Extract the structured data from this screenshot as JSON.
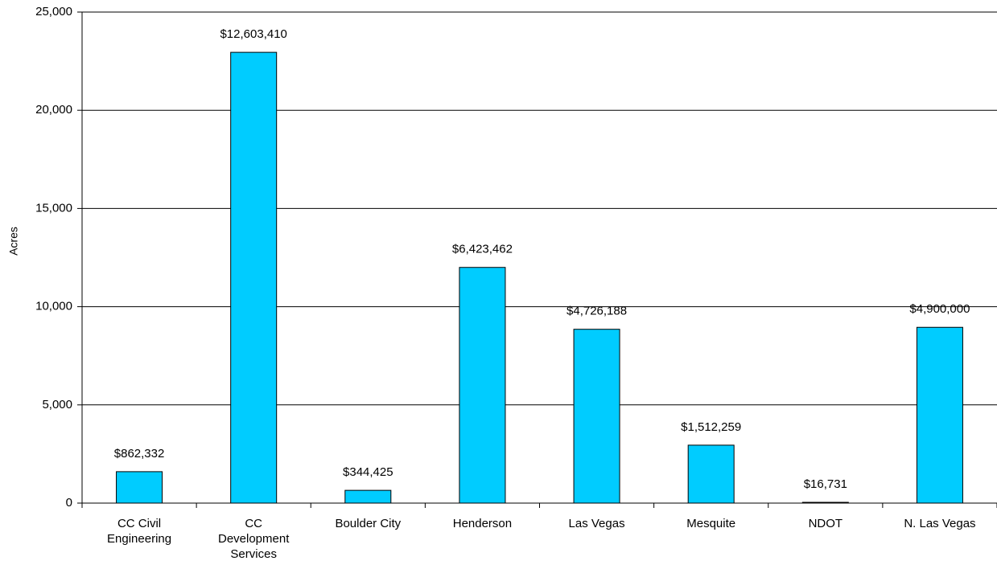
{
  "chart_data": {
    "type": "bar",
    "y_label": "Acres",
    "categories": [
      "CC Civil Engineering",
      "CC Development Services",
      "Boulder City",
      "Henderson",
      "Las Vegas",
      "Mesquite",
      "NDOT",
      "N. Las Vegas"
    ],
    "values": [
      1600,
      22950,
      650,
      12000,
      8850,
      2950,
      40,
      8950
    ],
    "bar_annotations": [
      "$862,332",
      "$12,603,410",
      "$344,425",
      "$6,423,462",
      "$4,726,188",
      "$1,512,259",
      "$16,731",
      "$4,900,000"
    ],
    "color": "#00ccff",
    "ylim": [
      0,
      25000
    ],
    "yticks": [
      0,
      {
        "value": 5000,
        "label": "5,000"
      },
      {
        "value": 10000,
        "label": "10,000"
      },
      {
        "value": 15000,
        "label": "15,000"
      },
      {
        "value": 20000,
        "label": "20,000"
      },
      {
        "value": 25000,
        "label": "25,000"
      }
    ],
    "grid": true
  }
}
